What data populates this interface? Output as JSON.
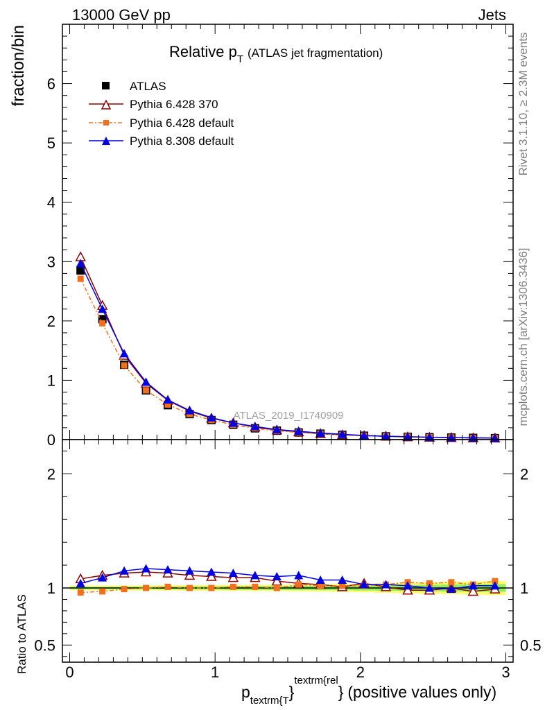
{
  "header": {
    "energy": "13000 GeV pp",
    "category": "Jets"
  },
  "side": {
    "rivet": "Rivet 3.1.10, ≥ 2.3M events",
    "source": "mcplots.cern.ch [arXiv:1306.3436]"
  },
  "chart_data": [
    {
      "type": "line",
      "title": "Relative p_T (ATLAS jet fragmentation)",
      "title_main": "Relative p",
      "title_sub": "T",
      "title_detail": "(ATLAS jet fragmentation)",
      "ylabel": "fraction/bin",
      "watermark": "ATLAS_2019_I1740909",
      "xlim": [
        -0.05,
        3.05
      ],
      "ylim": [
        0,
        7
      ],
      "y_ticks": [
        "0",
        "1",
        "2",
        "3",
        "4",
        "5",
        "6"
      ],
      "legend_position": "top-left",
      "x": [
        0.075,
        0.225,
        0.375,
        0.525,
        0.675,
        0.825,
        0.975,
        1.125,
        1.275,
        1.425,
        1.575,
        1.725,
        1.875,
        2.025,
        2.175,
        2.325,
        2.475,
        2.625,
        2.775,
        2.925
      ],
      "series": [
        {
          "name": "ATLAS",
          "color": "#000000",
          "marker": "square",
          "values": [
            2.85,
            2.03,
            1.26,
            0.83,
            0.58,
            0.43,
            0.33,
            0.25,
            0.19,
            0.15,
            0.12,
            0.1,
            0.08,
            0.065,
            0.055,
            0.047,
            0.04,
            0.034,
            0.029,
            0.025
          ]
        },
        {
          "name": "Pythia 6.428 370",
          "color": "#8b0000",
          "marker": "open-triangle",
          "values": [
            3.08,
            2.26,
            1.42,
            0.95,
            0.66,
            0.48,
            0.36,
            0.28,
            0.21,
            0.16,
            0.13,
            0.1,
            0.08,
            0.067,
            0.056,
            0.046,
            0.039,
            0.034,
            0.028,
            0.025
          ]
        },
        {
          "name": "Pythia 6.428 default",
          "color": "#f07020",
          "marker": "square-small",
          "dash": true,
          "values": [
            2.71,
            1.96,
            1.25,
            0.83,
            0.59,
            0.43,
            0.33,
            0.25,
            0.19,
            0.15,
            0.12,
            0.1,
            0.08,
            0.066,
            0.057,
            0.05,
            0.042,
            0.036,
            0.03,
            0.027
          ]
        },
        {
          "name": "Pythia 8.308 default",
          "color": "#0000e0",
          "marker": "triangle",
          "values": [
            2.97,
            2.2,
            1.45,
            0.97,
            0.67,
            0.49,
            0.37,
            0.28,
            0.22,
            0.17,
            0.14,
            0.11,
            0.09,
            0.068,
            0.057,
            0.048,
            0.04,
            0.034,
            0.03,
            0.026
          ]
        }
      ]
    },
    {
      "type": "line",
      "ylabel": "Ratio to ATLAS",
      "xlabel_main": "p",
      "xlabel_sub": "textrm{T",
      "xlabel_sup": "textrm{rel",
      "xlabel_brace": "}",
      "xlabel_suffix": "(positive values only)",
      "xlim": [
        -0.05,
        3.05
      ],
      "ylim": [
        0.35,
        2.3
      ],
      "x_ticks": [
        "0",
        "1",
        "2",
        "3"
      ],
      "y_ticks": [
        "0.5",
        "1",
        "2"
      ],
      "band": {
        "inner_color": "#90ee60",
        "outer_color": "#ffff70",
        "inner": [
          0.01,
          0.01,
          0.01,
          0.011,
          0.012,
          0.013,
          0.014,
          0.015,
          0.016,
          0.017,
          0.018,
          0.019,
          0.02,
          0.022,
          0.024,
          0.026,
          0.028,
          0.03,
          0.032,
          0.034
        ],
        "outer": [
          0.02,
          0.02,
          0.021,
          0.022,
          0.023,
          0.024,
          0.025,
          0.026,
          0.027,
          0.028,
          0.03,
          0.032,
          0.034,
          0.038,
          0.042,
          0.046,
          0.05,
          0.054,
          0.058,
          0.062
        ]
      },
      "x": [
        0.075,
        0.225,
        0.375,
        0.525,
        0.675,
        0.825,
        0.975,
        1.125,
        1.275,
        1.425,
        1.575,
        1.725,
        1.875,
        2.025,
        2.175,
        2.325,
        2.475,
        2.625,
        2.775,
        2.925
      ],
      "series": [
        {
          "name": "Pythia 6.428 370",
          "color": "#8b0000",
          "marker": "open-triangle",
          "values": [
            1.08,
            1.11,
            1.13,
            1.14,
            1.13,
            1.11,
            1.1,
            1.09,
            1.09,
            1.06,
            1.04,
            1.03,
            1.01,
            1.04,
            1.01,
            0.98,
            0.98,
            1.0,
            0.97,
            0.99
          ]
        },
        {
          "name": "Pythia 6.428 default",
          "color": "#f07020",
          "marker": "square-small",
          "dash": true,
          "values": [
            0.96,
            0.97,
            0.99,
            1.0,
            1.01,
            1.0,
            1.0,
            1.01,
            1.01,
            1.0,
            1.03,
            1.02,
            1.02,
            1.02,
            1.03,
            1.05,
            1.04,
            1.05,
            1.03,
            1.06
          ]
        },
        {
          "name": "Pythia 8.308 default",
          "color": "#0000e0",
          "marker": "triangle",
          "values": [
            1.04,
            1.09,
            1.15,
            1.17,
            1.16,
            1.15,
            1.14,
            1.13,
            1.11,
            1.1,
            1.11,
            1.07,
            1.07,
            1.03,
            1.03,
            1.02,
            1.0,
            0.99,
            1.02,
            1.02
          ]
        }
      ]
    }
  ]
}
